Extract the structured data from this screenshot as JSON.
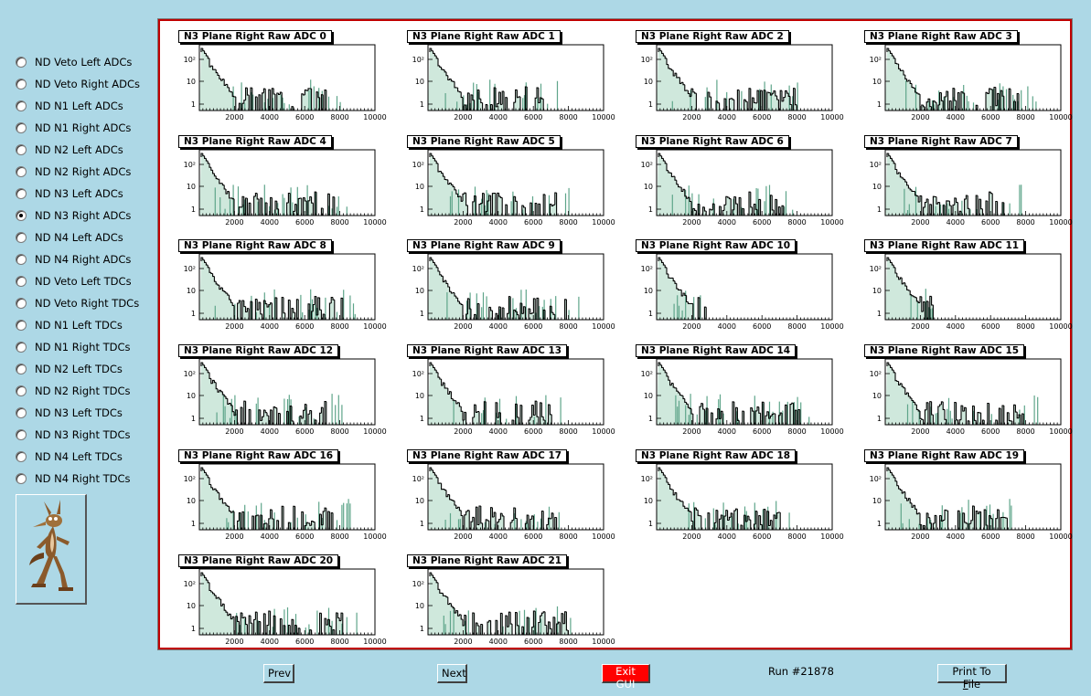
{
  "sidebar": {
    "options": [
      {
        "label": "ND Veto Left ADCs",
        "checked": false
      },
      {
        "label": "ND Veto Right ADCs",
        "checked": false
      },
      {
        "label": "ND N1 Left ADCs",
        "checked": false
      },
      {
        "label": "ND N1 Right ADCs",
        "checked": false
      },
      {
        "label": "ND N2 Left ADCs",
        "checked": false
      },
      {
        "label": "ND N2 Right ADCs",
        "checked": false
      },
      {
        "label": "ND N3 Left ADCs",
        "checked": false
      },
      {
        "label": "ND N3 Right ADCs",
        "checked": true
      },
      {
        "label": "ND N4 Left ADCs",
        "checked": false
      },
      {
        "label": "ND N4 Right ADCs",
        "checked": false
      },
      {
        "label": "ND Veto Left TDCs",
        "checked": false
      },
      {
        "label": "ND Veto Right TDCs",
        "checked": false
      },
      {
        "label": "ND N1 Left TDCs",
        "checked": false
      },
      {
        "label": "ND N1 Right TDCs",
        "checked": false
      },
      {
        "label": "ND N2 Left TDCs",
        "checked": false
      },
      {
        "label": "ND N2 Right TDCs",
        "checked": false
      },
      {
        "label": "ND N3 Left TDCs",
        "checked": false
      },
      {
        "label": "ND N3 Right TDCs",
        "checked": false
      },
      {
        "label": "ND N4 Left TDCs",
        "checked": false
      },
      {
        "label": "ND N4 Right TDCs",
        "checked": false
      }
    ]
  },
  "plots": {
    "titles": [
      "N3 Plane Right Raw ADC 0",
      "N3 Plane Right Raw ADC 1",
      "N3 Plane Right Raw ADC 2",
      "N3 Plane Right Raw ADC 3",
      "N3 Plane Right Raw ADC 4",
      "N3 Plane Right Raw ADC 5",
      "N3 Plane Right Raw ADC 6",
      "N3 Plane Right Raw ADC 7",
      "N3 Plane Right Raw ADC 8",
      "N3 Plane Right Raw ADC 9",
      "N3 Plane Right Raw ADC 10",
      "N3 Plane Right Raw ADC 11",
      "N3 Plane Right Raw ADC 12",
      "N3 Plane Right Raw ADC 13",
      "N3 Plane Right Raw ADC 14",
      "N3 Plane Right Raw ADC 15",
      "N3 Plane Right Raw ADC 16",
      "N3 Plane Right Raw ADC 17",
      "N3 Plane Right Raw ADC 18",
      "N3 Plane Right Raw ADC 19",
      "N3 Plane Right Raw ADC 20",
      "N3 Plane Right Raw ADC 21"
    ],
    "x_ticks": [
      "2000",
      "4000",
      "6000",
      "8000",
      "10000"
    ],
    "y_ticks": [
      "1",
      "10",
      "10²"
    ],
    "x_range": [
      0,
      10000
    ],
    "y_scale": "log",
    "colors": {
      "primary": "#000000",
      "overlay": "#5fa58a",
      "fill": "#cfe8dc"
    }
  },
  "buttons": {
    "prev": "Prev",
    "next": "Next",
    "exit": "Exit GUI",
    "print_pre": "Print To ",
    "print_ul": "F",
    "print_post": "ile"
  },
  "status": {
    "run": "Run #21878"
  },
  "colors": {
    "background": "#add8e6",
    "frame": "#c00000",
    "exit_button": "#ff0000"
  },
  "logo": {
    "icon": "coyote-logo-icon"
  }
}
